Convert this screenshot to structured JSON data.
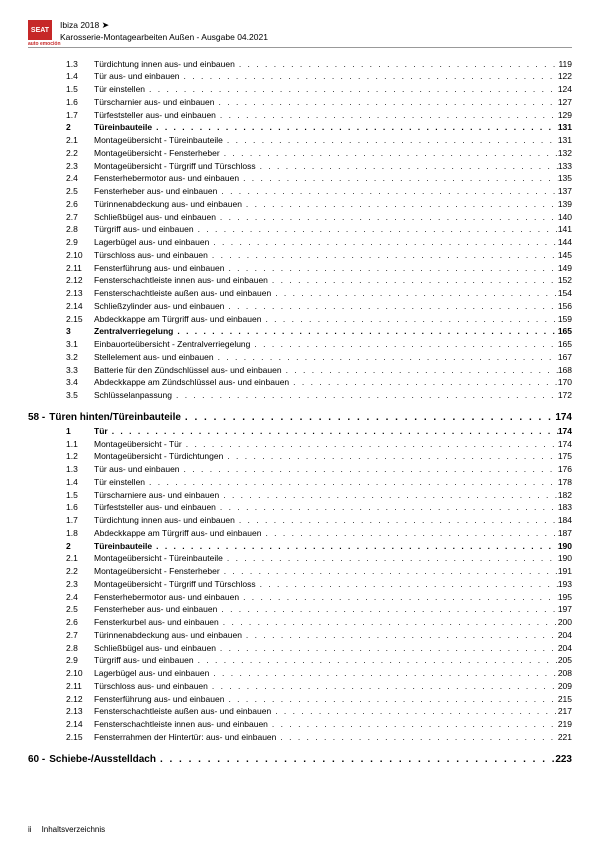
{
  "header": {
    "logo_text": "SEAT",
    "logo_sub": "auto emoción",
    "model": "Ibiza 2018",
    "arrow": "➤",
    "subtitle": "Karosserie-Montagearbeiten Außen - Ausgabe 04.2021"
  },
  "dots": ". . . . . . . . . . . . . . . . . . . . . . . . . . . . . . . . . . . . . . . . . . . . . . . . . . . . . . . . . . . . . . . . . . . . . . . . . . . . . . . . . . . . . . . . . . . . . .",
  "sections": [
    {
      "type": "item",
      "num": "1.3",
      "label": "Türdichtung innen aus- und einbauen",
      "page": "119"
    },
    {
      "type": "item",
      "num": "1.4",
      "label": "Tür aus- und einbauen",
      "page": "122"
    },
    {
      "type": "item",
      "num": "1.5",
      "label": "Tür einstellen",
      "page": "124"
    },
    {
      "type": "item",
      "num": "1.6",
      "label": "Türscharnier aus- und einbauen",
      "page": "127"
    },
    {
      "type": "item",
      "num": "1.7",
      "label": "Türfeststeller aus- und einbauen",
      "page": "129"
    },
    {
      "type": "item",
      "num": "2",
      "label": "Türeinbauteile",
      "page": "131",
      "bold": true
    },
    {
      "type": "item",
      "num": "2.1",
      "label": "Montageübersicht - Türeinbauteile",
      "page": "131"
    },
    {
      "type": "item",
      "num": "2.2",
      "label": "Montageübersicht - Fensterheber",
      "page": "132"
    },
    {
      "type": "item",
      "num": "2.3",
      "label": "Montageübersicht - Türgriff und Türschloss",
      "page": "133"
    },
    {
      "type": "item",
      "num": "2.4",
      "label": "Fensterhebermotor aus- und einbauen",
      "page": "135"
    },
    {
      "type": "item",
      "num": "2.5",
      "label": "Fensterheber aus- und einbauen",
      "page": "137"
    },
    {
      "type": "item",
      "num": "2.6",
      "label": "Türinnenabdeckung aus- und einbauen",
      "page": "139"
    },
    {
      "type": "item",
      "num": "2.7",
      "label": "Schließbügel aus- und einbauen",
      "page": "140"
    },
    {
      "type": "item",
      "num": "2.8",
      "label": "Türgriff aus- und einbauen",
      "page": "141"
    },
    {
      "type": "item",
      "num": "2.9",
      "label": "Lagerbügel aus- und einbauen",
      "page": "144"
    },
    {
      "type": "item",
      "num": "2.10",
      "label": "Türschloss aus- und einbauen",
      "page": "145"
    },
    {
      "type": "item",
      "num": "2.11",
      "label": "Fensterführung aus- und einbauen",
      "page": "149"
    },
    {
      "type": "item",
      "num": "2.12",
      "label": "Fensterschachtleiste innen aus- und einbauen",
      "page": "152"
    },
    {
      "type": "item",
      "num": "2.13",
      "label": "Fensterschachtleiste außen aus- und einbauen",
      "page": "154"
    },
    {
      "type": "item",
      "num": "2.14",
      "label": "Schließzylinder aus- und einbauen",
      "page": "156"
    },
    {
      "type": "item",
      "num": "2.15",
      "label": "Abdeckkappe am Türgriff aus- und einbauen",
      "page": "159"
    },
    {
      "type": "item",
      "num": "3",
      "label": "Zentralverriegelung",
      "page": "165",
      "bold": true
    },
    {
      "type": "item",
      "num": "3.1",
      "label": "Einbauorteübersicht - Zentralverriegelung",
      "page": "165"
    },
    {
      "type": "item",
      "num": "3.2",
      "label": "Stellelement aus- und einbauen",
      "page": "167"
    },
    {
      "type": "item",
      "num": "3.3",
      "label": "Batterie für den Zündschlüssel aus- und einbauen",
      "page": "168"
    },
    {
      "type": "item",
      "num": "3.4",
      "label": "Abdeckkappe am Zündschlüssel aus- und einbauen",
      "page": "170"
    },
    {
      "type": "item",
      "num": "3.5",
      "label": "Schlüsselanpassung",
      "page": "172"
    },
    {
      "type": "chapter",
      "num": "58 -",
      "label": "Türen hinten/Türeinbauteile",
      "page": "174"
    },
    {
      "type": "item",
      "num": "1",
      "label": "Tür",
      "page": "174",
      "bold": true
    },
    {
      "type": "item",
      "num": "1.1",
      "label": "Montageübersicht - Tür",
      "page": "174"
    },
    {
      "type": "item",
      "num": "1.2",
      "label": "Montageübersicht - Türdichtungen",
      "page": "175"
    },
    {
      "type": "item",
      "num": "1.3",
      "label": "Tür aus- und einbauen",
      "page": "176"
    },
    {
      "type": "item",
      "num": "1.4",
      "label": "Tür einstellen",
      "page": "178"
    },
    {
      "type": "item",
      "num": "1.5",
      "label": "Türscharniere aus- und einbauen",
      "page": "182"
    },
    {
      "type": "item",
      "num": "1.6",
      "label": "Türfeststeller aus- und einbauen",
      "page": "183"
    },
    {
      "type": "item",
      "num": "1.7",
      "label": "Türdichtung innen aus- und einbauen",
      "page": "184"
    },
    {
      "type": "item",
      "num": "1.8",
      "label": "Abdeckkappe am Türgriff aus- und einbauen",
      "page": "187"
    },
    {
      "type": "item",
      "num": "2",
      "label": "Türeinbauteile",
      "page": "190",
      "bold": true
    },
    {
      "type": "item",
      "num": "2.1",
      "label": "Montageübersicht - Türeinbauteile",
      "page": "190"
    },
    {
      "type": "item",
      "num": "2.2",
      "label": "Montageübersicht - Fensterheber",
      "page": "191"
    },
    {
      "type": "item",
      "num": "2.3",
      "label": "Montageübersicht - Türgriff und Türschloss",
      "page": "193"
    },
    {
      "type": "item",
      "num": "2.4",
      "label": "Fensterhebermotor aus- und einbauen",
      "page": "195"
    },
    {
      "type": "item",
      "num": "2.5",
      "label": "Fensterheber aus- und einbauen",
      "page": "197"
    },
    {
      "type": "item",
      "num": "2.6",
      "label": "Fensterkurbel aus- und einbauen",
      "page": "200"
    },
    {
      "type": "item",
      "num": "2.7",
      "label": "Türinnenabdeckung aus- und einbauen",
      "page": "204"
    },
    {
      "type": "item",
      "num": "2.8",
      "label": "Schließbügel aus- und einbauen",
      "page": "204"
    },
    {
      "type": "item",
      "num": "2.9",
      "label": "Türgriff aus- und einbauen",
      "page": "205"
    },
    {
      "type": "item",
      "num": "2.10",
      "label": "Lagerbügel aus- und einbauen",
      "page": "208"
    },
    {
      "type": "item",
      "num": "2.11",
      "label": "Türschloss aus- und einbauen",
      "page": "209"
    },
    {
      "type": "item",
      "num": "2.12",
      "label": "Fensterführung aus- und einbauen",
      "page": "215"
    },
    {
      "type": "item",
      "num": "2.13",
      "label": "Fensterschachtleiste außen aus- und einbauen",
      "page": "217"
    },
    {
      "type": "item",
      "num": "2.14",
      "label": "Fensterschachtleiste innen aus- und einbauen",
      "page": "219"
    },
    {
      "type": "item",
      "num": "2.15",
      "label": "Fensterrahmen der Hintertür: aus- und einbauen",
      "page": "221"
    },
    {
      "type": "chapter",
      "num": "60 -",
      "label": "Schiebe-/Ausstelldach",
      "page": "223"
    }
  ],
  "footer": {
    "page": "ii",
    "label": "Inhaltsverzeichnis"
  }
}
